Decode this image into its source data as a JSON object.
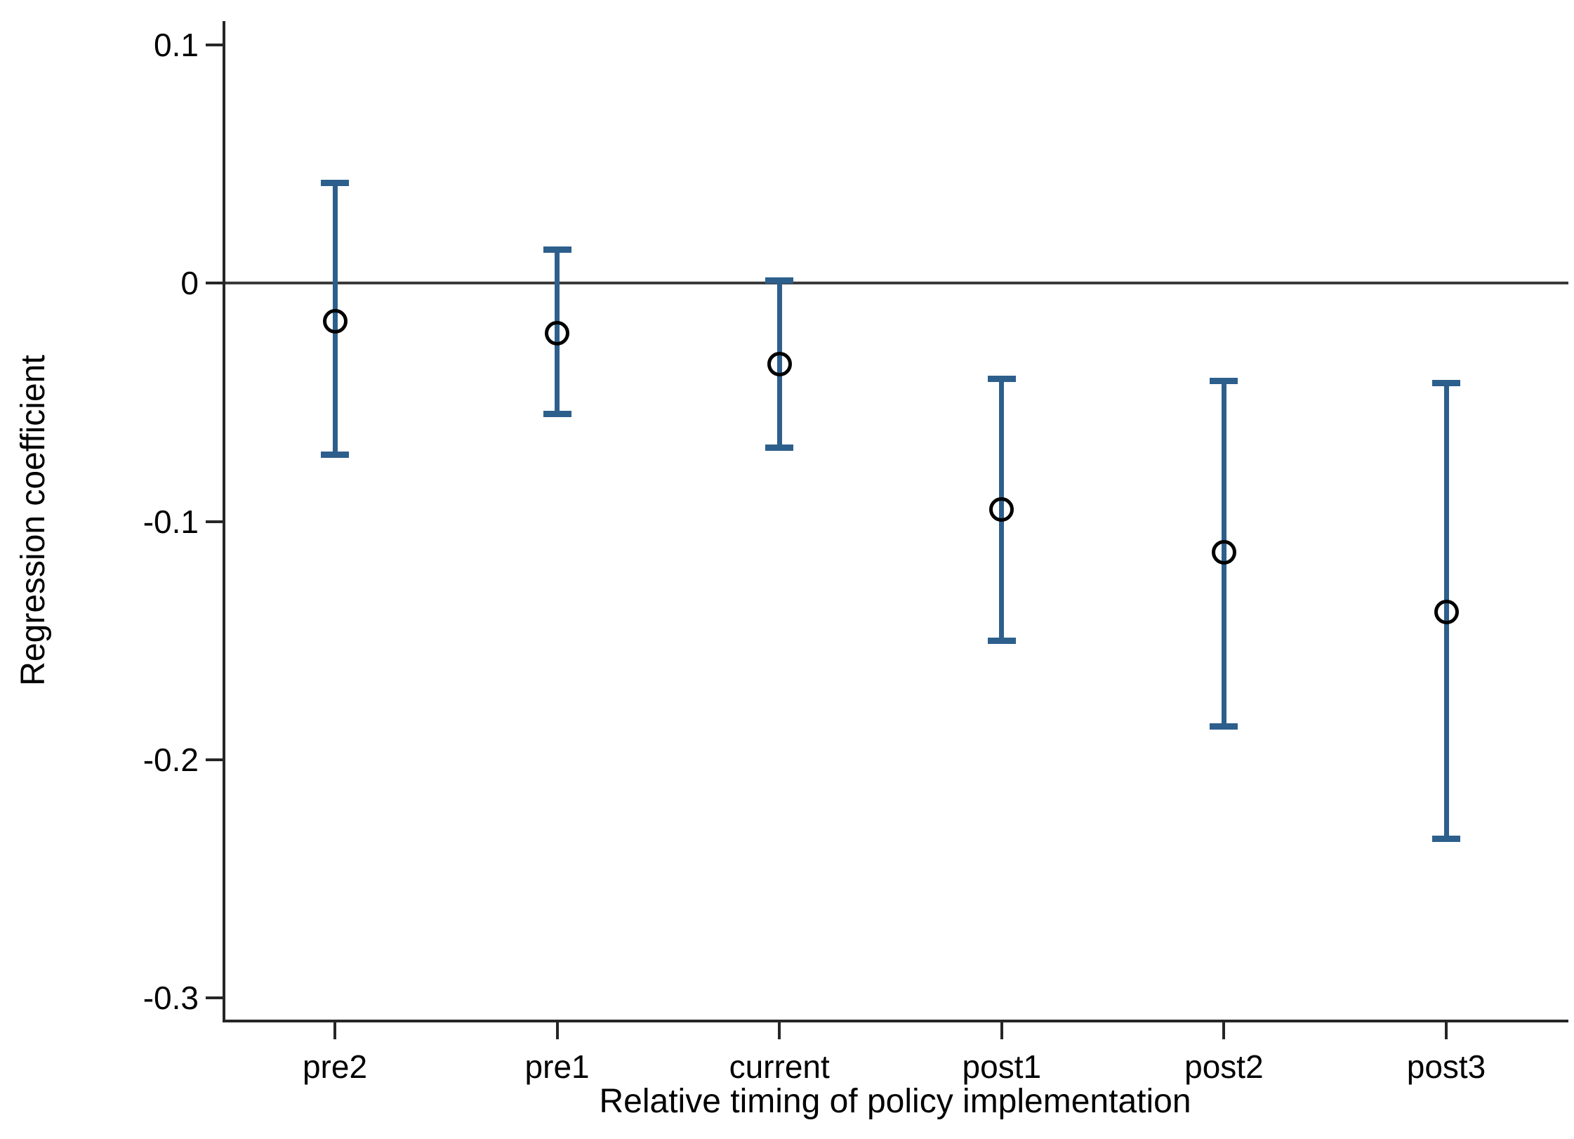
{
  "page": {
    "background": "#ffffff"
  },
  "chart_data": {
    "type": "scatter",
    "chart_kind": "coefficient-plot-with-95ci-error-bars",
    "title": "",
    "xlabel": "Relative timing of policy implementation",
    "ylabel": "Regression coefficient",
    "categories": [
      "pre2",
      "pre1",
      "current",
      "post1",
      "post2",
      "post3"
    ],
    "series": [
      {
        "name": "coefficient",
        "marker": "hollow-circle",
        "values": [
          -0.016,
          -0.021,
          -0.034,
          -0.095,
          -0.113,
          -0.138
        ]
      },
      {
        "name": "ci_upper",
        "values": [
          0.042,
          0.014,
          0.001,
          -0.04,
          -0.041,
          -0.042
        ]
      },
      {
        "name": "ci_lower",
        "values": [
          -0.072,
          -0.055,
          -0.069,
          -0.15,
          -0.186,
          -0.233
        ]
      }
    ],
    "y_ticks": [
      "0.1",
      "0",
      "-0.1",
      "-0.2",
      "-0.3"
    ],
    "y_tick_values": [
      0.1,
      0,
      -0.1,
      -0.2,
      -0.3
    ],
    "ylim": [
      0.11,
      -0.309
    ],
    "zero_reference_line": 0,
    "grid": false,
    "legend": "none",
    "axes_shown": [
      "left",
      "bottom"
    ],
    "colors": {
      "error_bar": "#2d5f8c",
      "marker_stroke": "#000000",
      "axis": "#262626",
      "zero_line": "#3a3a3a",
      "text": "#000000",
      "background": "#ffffff"
    }
  }
}
